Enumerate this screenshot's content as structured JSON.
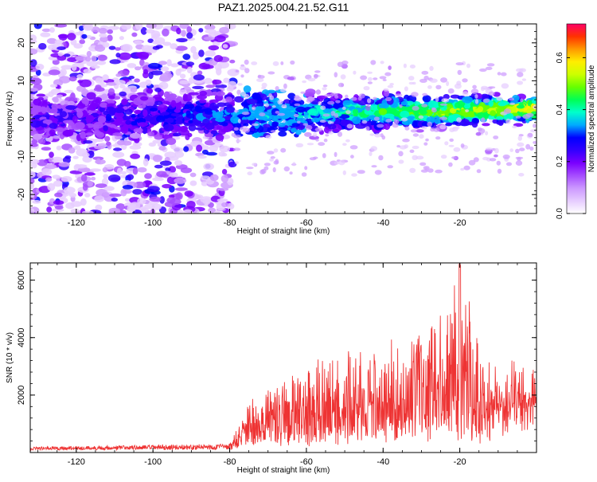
{
  "title": "PAZ1.2025.004.21.52.G11",
  "chart_data": [
    {
      "type": "heatmap",
      "title": "PAZ1.2025.004.21.52.G11",
      "xlabel": "Height of straight line (km)",
      "ylabel": "Frequency (Hz)",
      "xlim": [
        -132,
        0
      ],
      "ylim": [
        -25,
        25
      ],
      "xticks": [
        -120,
        -100,
        -80,
        -60,
        -40,
        -20
      ],
      "yticks": [
        -20,
        -10,
        0,
        10,
        20
      ],
      "colorbar": {
        "label": "Normalized spectral amplitude",
        "range": [
          0,
          0.73
        ],
        "ticks": [
          "0.0",
          "0.2",
          "0.4",
          "0.6"
        ],
        "colormap": [
          "#ffffff",
          "#e6ccff",
          "#cc99ff",
          "#a64dff",
          "#7a00ff",
          "#3300ff",
          "#0000ff",
          "#00aaff",
          "#00ffcc",
          "#00ff55",
          "#66ff00",
          "#ccff00",
          "#ffee00",
          "#ff9900",
          "#ff3300",
          "#ff0066"
        ]
      },
      "features": [
        {
          "name": "noise region",
          "x_range": [
            -132,
            -79
          ],
          "f_range": [
            -25,
            25
          ],
          "level": 0.1
        },
        {
          "name": "signal band",
          "x_range": [
            -132,
            0
          ],
          "f_center_start": 0,
          "f_center_end": 1,
          "width_hz": 6,
          "peak_level": 0.73
        }
      ]
    },
    {
      "type": "line",
      "xlabel": "Height of straight line (km)",
      "ylabel": "SNR (10 * v/v)",
      "xlim": [
        -132,
        0
      ],
      "ylim": [
        0,
        6600
      ],
      "xticks": [
        -120,
        -100,
        -80,
        -60,
        -40,
        -20
      ],
      "yticks": [
        2000,
        4000,
        6000
      ],
      "color": "#ee3333",
      "envelope": [
        {
          "x": -132,
          "baseline": 80,
          "peak": 200
        },
        {
          "x": -80,
          "baseline": 100,
          "peak": 300
        },
        {
          "x": -78,
          "baseline": 300,
          "peak": 900
        },
        {
          "x": -74,
          "baseline": 400,
          "peak": 2000
        },
        {
          "x": -66,
          "baseline": 500,
          "peak": 2600
        },
        {
          "x": -56,
          "baseline": 600,
          "peak": 3300
        },
        {
          "x": -42,
          "baseline": 900,
          "peak": 3600
        },
        {
          "x": -27,
          "baseline": 1100,
          "peak": 4400
        },
        {
          "x": -20,
          "baseline": 1200,
          "peak": 6600
        },
        {
          "x": -15,
          "baseline": 600,
          "peak": 4000
        },
        {
          "x": -10,
          "baseline": 1500,
          "peak": 3000
        },
        {
          "x": -3,
          "baseline": 1800,
          "peak": 3100
        },
        {
          "x": 0,
          "baseline": 2000,
          "peak": 2500
        }
      ]
    }
  ]
}
